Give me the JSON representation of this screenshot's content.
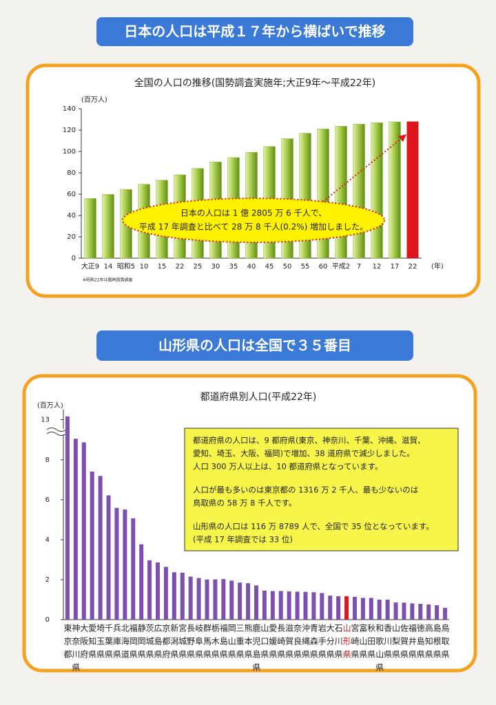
{
  "headings": [
    "日本の人口は平成１７年から横ばいで推移",
    "山形県の人口は全国で３５番目"
  ],
  "chart_data": [
    {
      "type": "bar",
      "title": "全国の人口の推移(国勢調査実施年;大正9年～平成22年)",
      "y_label": "(百万人)",
      "x_label": "(年)",
      "note": "※昭和22年は臨時国勢調査",
      "annotation": [
        "日本の人口は 1 億 2805 万 6 千人で、",
        "平成 17 年調査と比べて 28 万 8 千人(0.2%) 増加しました。"
      ],
      "categories": [
        "大正9",
        "14",
        "昭和5",
        "10",
        "15",
        "22",
        "25",
        "30",
        "35",
        "40",
        "45",
        "50",
        "55",
        "60",
        "平成2",
        "7",
        "12",
        "17",
        "22"
      ],
      "values": [
        55.96,
        59.74,
        64.45,
        69.25,
        73.11,
        78.1,
        84.12,
        90.08,
        94.3,
        99.21,
        104.67,
        111.94,
        117.06,
        121.05,
        123.61,
        125.57,
        126.93,
        127.77,
        128.06
      ],
      "color": "#8cb82e",
      "highlight": {
        "category": "22",
        "color": "#e0141c"
      },
      "ylim": [
        0,
        140
      ],
      "yticks": [
        0,
        20,
        40,
        60,
        80,
        100,
        120,
        140
      ]
    },
    {
      "type": "bar",
      "title": "都道府県別人口(平成22年)",
      "y_label": "(百万人)",
      "text_box": [
        [
          "都道府県の人口は、9 都府県(東京、神奈川、千葉、沖縄、滋賀、",
          "愛知、埼玉、大阪、福岡)で増加、38 道府県で減少しました。",
          "人口 300 万人以上は、10 都道府県となっています。"
        ],
        [
          "人口が最も多いのは東京都の 1316 万 2 千人、最も少ないのは",
          "鳥取県の 58 万 8 千人です。"
        ],
        [
          "山形県の人口は 116 万 8789 人で、全国で 35 位となっています。",
          "(平成 17 年調査では 33 位)"
        ]
      ],
      "categories": [
        "東京都",
        "神奈川県",
        "大阪府",
        "愛知県",
        "埼玉県",
        "千葉県",
        "兵庫県",
        "北海道",
        "福岡県",
        "静岡県",
        "茨城県",
        "広島県",
        "京都府",
        "新潟県",
        "宮城県",
        "長野県",
        "岐阜県",
        "群馬県",
        "栃木県",
        "福島県",
        "岡山県",
        "三重県",
        "熊本県",
        "鹿児島県",
        "山口県",
        "愛媛県",
        "長崎県",
        "滋賀県",
        "奈良県",
        "沖縄県",
        "青森県",
        "岩手県",
        "大分県",
        "石川県",
        "山形県",
        "宮崎県",
        "富山県",
        "秋田県",
        "和歌山県",
        "香川県",
        "山梨県",
        "佐賀県",
        "福井県",
        "徳島県",
        "高知県",
        "島根県",
        "鳥取県"
      ],
      "values": [
        13.16,
        9.05,
        8.87,
        7.41,
        7.19,
        6.22,
        5.59,
        5.51,
        5.07,
        3.77,
        2.97,
        2.86,
        2.64,
        2.37,
        2.35,
        2.15,
        2.08,
        2.01,
        2.01,
        2.03,
        1.95,
        1.85,
        1.82,
        1.71,
        1.45,
        1.43,
        1.43,
        1.41,
        1.4,
        1.39,
        1.37,
        1.33,
        1.2,
        1.17,
        1.17,
        1.14,
        1.09,
        1.09,
        1.0,
        1.0,
        0.86,
        0.85,
        0.81,
        0.79,
        0.76,
        0.72,
        0.59
      ],
      "color": "#7d4fae",
      "highlight": {
        "category": "山形県",
        "color": "#e0141c"
      },
      "ylim": [
        0,
        13.5
      ],
      "yticks": [
        0,
        2,
        4,
        6,
        8,
        13
      ],
      "axis_break": [
        9.3,
        12.5
      ]
    }
  ]
}
